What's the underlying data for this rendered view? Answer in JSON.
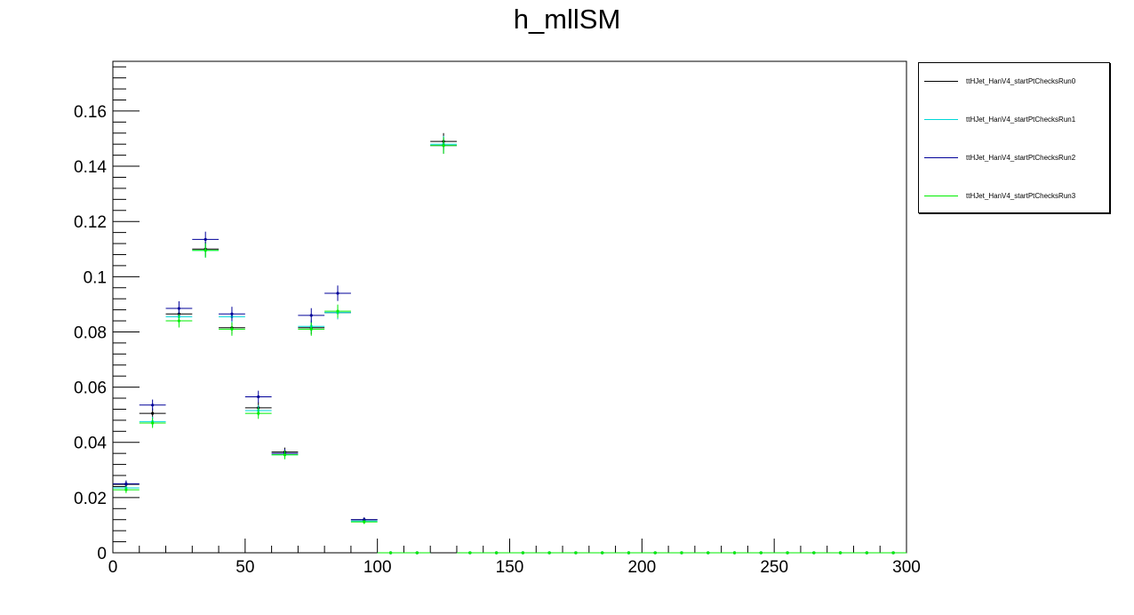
{
  "chart_data": {
    "type": "scatter",
    "title": "h_mllSM",
    "xlabel": "",
    "ylabel": "",
    "xlim": [
      0,
      300
    ],
    "ylim": [
      0,
      0.178
    ],
    "x_ticks": [
      "0",
      "50",
      "100",
      "150",
      "200",
      "250",
      "300"
    ],
    "x_tick_values": [
      0,
      50,
      100,
      150,
      200,
      250,
      300
    ],
    "y_ticks": [
      "0",
      "0.02",
      "0.04",
      "0.06",
      "0.08",
      "0.1",
      "0.12",
      "0.14",
      "0.16"
    ],
    "y_tick_values": [
      0,
      0.02,
      0.04,
      0.06,
      0.08,
      0.1,
      0.12,
      0.14,
      0.16
    ],
    "bin_width": 10,
    "x": [
      5,
      15,
      25,
      35,
      45,
      55,
      65,
      75,
      85,
      95,
      105,
      115,
      125,
      135,
      145,
      155,
      165,
      175,
      185,
      195,
      205,
      215,
      225,
      235,
      245,
      255,
      265,
      275,
      285,
      295
    ],
    "legend_position": "right-outside-top",
    "grid": false,
    "series": [
      {
        "name": "ttHJet_HanV4_startPtChecksRun0",
        "color": "#000000",
        "values": [
          0.0248,
          0.0505,
          0.0865,
          0.11,
          0.0815,
          0.0525,
          0.0365,
          0.0815,
          0.087,
          0.012,
          0,
          0,
          0.149,
          0,
          0,
          0,
          0,
          0,
          0,
          0,
          0,
          0,
          0,
          0,
          0,
          0,
          0,
          0,
          0,
          0
        ],
        "errors": [
          0.0012,
          0.0018,
          0.0024,
          0.0026,
          0.0024,
          0.002,
          0.0016,
          0.0024,
          0.0024,
          0.0008,
          0,
          0,
          0.003,
          0,
          0,
          0,
          0,
          0,
          0,
          0,
          0,
          0,
          0,
          0,
          0,
          0,
          0,
          0,
          0,
          0
        ]
      },
      {
        "name": "ttHJet_HanV4_startPtChecksRun1",
        "color": "#00d8d8",
        "values": [
          0.0235,
          0.0475,
          0.0855,
          0.1095,
          0.0855,
          0.0515,
          0.0355,
          0.082,
          0.087,
          0.0115,
          0,
          0,
          0.148,
          0,
          0,
          0,
          0,
          0,
          0,
          0,
          0,
          0,
          0,
          0,
          0,
          0,
          0,
          0,
          0,
          0
        ],
        "errors": [
          0.0012,
          0.0018,
          0.0024,
          0.0026,
          0.0024,
          0.002,
          0.0016,
          0.0024,
          0.0024,
          0.0008,
          0,
          0,
          0.003,
          0,
          0,
          0,
          0,
          0,
          0,
          0,
          0,
          0,
          0,
          0,
          0,
          0,
          0,
          0,
          0,
          0
        ]
      },
      {
        "name": "ttHJet_HanV4_startPtChecksRun2",
        "color": "#000099",
        "values": [
          0.025,
          0.0535,
          0.0885,
          0.1135,
          0.0865,
          0.0565,
          0.036,
          0.086,
          0.094,
          0.012,
          0,
          0,
          0.1475,
          0,
          0,
          0,
          0,
          0,
          0,
          0,
          0,
          0,
          0,
          0,
          0,
          0,
          0,
          0,
          0,
          0
        ],
        "errors": [
          0.0012,
          0.002,
          0.0026,
          0.0028,
          0.0026,
          0.0022,
          0.0016,
          0.0026,
          0.0028,
          0.0008,
          0,
          0,
          0.003,
          0,
          0,
          0,
          0,
          0,
          0,
          0,
          0,
          0,
          0,
          0,
          0,
          0,
          0,
          0,
          0,
          0
        ]
      },
      {
        "name": "ttHJet_HanV4_startPtChecksRun3",
        "color": "#00ee00",
        "values": [
          0.0228,
          0.047,
          0.084,
          0.1095,
          0.081,
          0.0505,
          0.0355,
          0.081,
          0.0875,
          0.0112,
          0,
          0,
          0.1475,
          0,
          0,
          0,
          0,
          0,
          0,
          0,
          0,
          0,
          0,
          0,
          0,
          0,
          0,
          0,
          0,
          0
        ],
        "errors": [
          0.0012,
          0.0018,
          0.0024,
          0.0026,
          0.0024,
          0.002,
          0.0016,
          0.0024,
          0.0024,
          0.0008,
          0,
          0,
          0.003,
          0,
          0,
          0,
          0,
          0,
          0,
          0,
          0,
          0,
          0,
          0,
          0,
          0,
          0,
          0,
          0,
          0
        ]
      }
    ]
  }
}
